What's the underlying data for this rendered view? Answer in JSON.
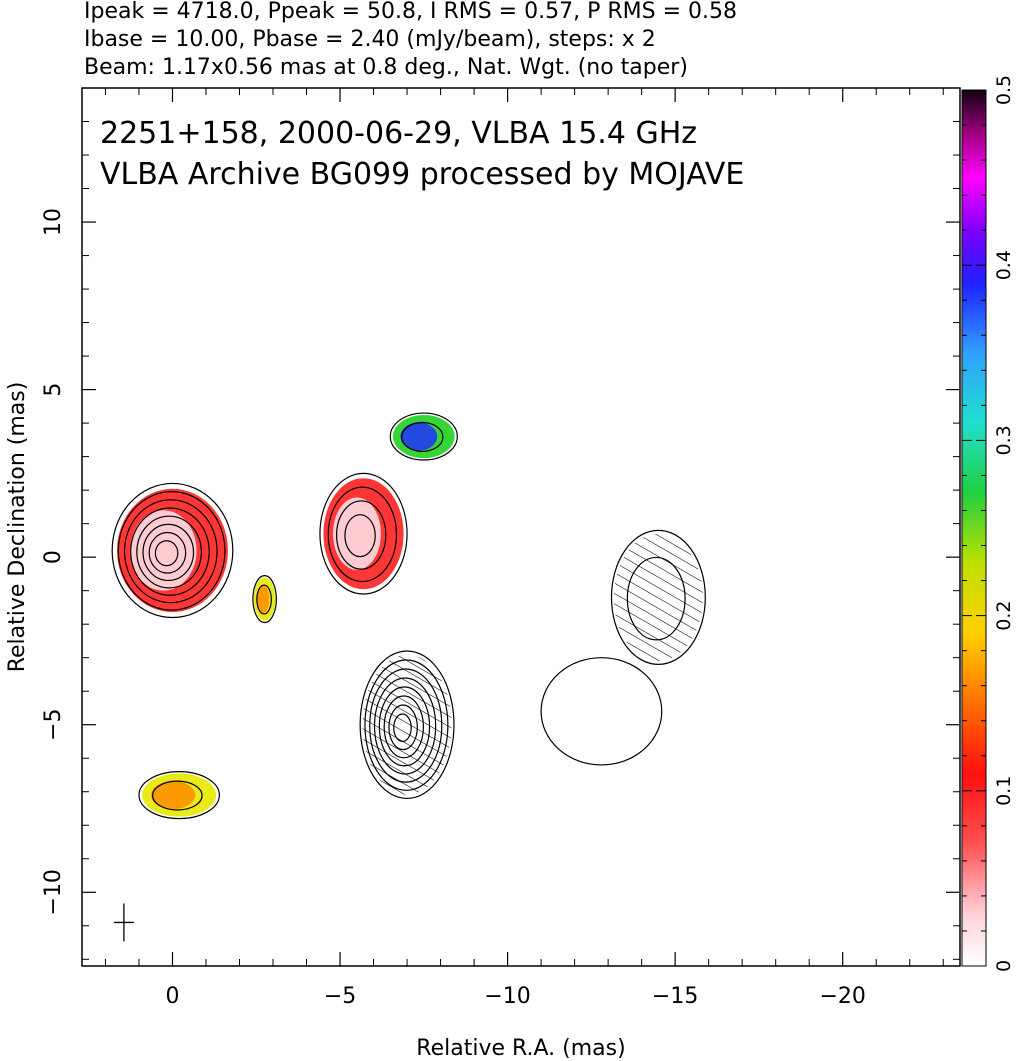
{
  "header": {
    "line1": "Ipeak = 4718.0, Ppeak = 50.8, I RMS = 0.57, P RMS = 0.58",
    "line2": "Ibase = 10.00, Pbase = 2.40 (mJy/beam), steps: x 2",
    "line3": "Beam: 1.17x0.56 mas at 0.8 deg., Nat. Wgt. (no taper)"
  },
  "plot_labels": {
    "line1": "2251+158, 2000-06-29, VLBA 15.4 GHz",
    "line2": "VLBA Archive BG099 processed by MOJAVE"
  },
  "chart_data": {
    "type": "heatmap",
    "title": "2251+158, 2000-06-29, VLBA 15.4 GHz",
    "subtitle": "VLBA Archive BG099 processed by MOJAVE",
    "xlabel": "Relative R.A. (mas)",
    "ylabel": "Relative Declination (mas)",
    "xlim": [
      2.7,
      -23.5
    ],
    "ylim": [
      -12.2,
      14.0
    ],
    "x_ticks": [
      0,
      -5,
      -10,
      -15,
      -20
    ],
    "x_tick_labels": [
      "0",
      "−5",
      "−10",
      "−15",
      "−20"
    ],
    "y_ticks": [
      -10,
      -5,
      0,
      5,
      10
    ],
    "y_tick_labels": [
      "−10",
      "−5",
      "0",
      "5",
      "10"
    ],
    "colorbar": {
      "min": 0,
      "max": 0.5,
      "ticks": [
        0,
        0.1,
        0.2,
        0.3,
        0.4,
        0.5
      ],
      "tick_labels": [
        "0",
        "0.1",
        "0.2",
        "0.3",
        "0.4",
        "0.5"
      ]
    },
    "contour_components": [
      {
        "x": 0.0,
        "y": 0.2,
        "rx": 1.8,
        "ry": 2.0,
        "levels": 8,
        "fill": "red"
      },
      {
        "x": -2.75,
        "y": -1.25,
        "rx": 0.35,
        "ry": 0.7,
        "levels": 2,
        "fill": "orange"
      },
      {
        "x": -5.7,
        "y": 0.7,
        "rx": 1.3,
        "ry": 1.8,
        "levels": 4,
        "fill": "red"
      },
      {
        "x": -7.5,
        "y": 3.6,
        "rx": 1.0,
        "ry": 0.7,
        "levels": 2,
        "fill": "blue"
      },
      {
        "x": -7.0,
        "y": -5.0,
        "rx": 1.4,
        "ry": 2.2,
        "levels": 8,
        "fill": "none",
        "hatched": true
      },
      {
        "x": -0.2,
        "y": -7.1,
        "rx": 1.2,
        "ry": 0.7,
        "levels": 2,
        "fill": "orange"
      },
      {
        "x": -14.5,
        "y": -1.2,
        "rx": 1.4,
        "ry": 2.0,
        "levels": 2,
        "fill": "none",
        "hatched": true
      },
      {
        "x": -12.8,
        "y": -4.6,
        "rx": 1.8,
        "ry": 1.6,
        "levels": 1,
        "fill": "none"
      }
    ],
    "colors": {
      "low": "#ffe8ec",
      "red": "#ff2020",
      "orange": "#ff8c00",
      "yellow": "#e8e800",
      "green": "#20d020",
      "cyan": "#20d8d8",
      "blue": "#2030ff",
      "magenta": "#ff00ff",
      "high": "#100010"
    }
  },
  "axis": {
    "xlabel": "Relative R.A. (mas)",
    "ylabel": "Relative Declination (mas)"
  }
}
